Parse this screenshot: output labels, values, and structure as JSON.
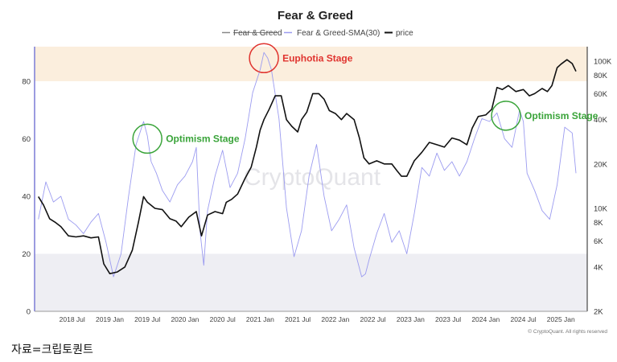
{
  "chart_data": {
    "type": "line",
    "title": "Fear & Greed",
    "legend": [
      {
        "name": "Fear & Greed",
        "color": "#888888",
        "strikethrough": true
      },
      {
        "name": "Fear & Greed-SMA(30)",
        "color": "#9c9cf0"
      },
      {
        "name": "price",
        "color": "#111111"
      }
    ],
    "left_axis": {
      "ylim": [
        0,
        92
      ],
      "ticks": [
        0,
        20,
        40,
        60,
        80
      ]
    },
    "right_axis": {
      "scale": "log",
      "ylim": [
        2000,
        125000
      ],
      "ticks": [
        2000,
        4000,
        6000,
        8000,
        10000,
        20000,
        40000,
        60000,
        80000,
        100000
      ],
      "tick_labels": [
        "2K",
        "4K",
        "6K",
        "8K",
        "10K",
        "20K",
        "40K",
        "60K",
        "80K",
        "100K"
      ]
    },
    "x_ticks": [
      "2018 Jul",
      "2019 Jan",
      "2019 Jul",
      "2020 Jan",
      "2020 Jul",
      "2021 Jan",
      "2021 Jul",
      "2022 Jan",
      "2022 Jul",
      "2023 Jan",
      "2023 Jul",
      "2024 Jan",
      "2024 Jul",
      "2025 Jan"
    ],
    "x_range": [
      2018.0,
      2025.35
    ],
    "bands": [
      {
        "name": "greed-zone",
        "y_from": 80,
        "y_to": 92,
        "color": "#fbeedd"
      },
      {
        "name": "fear-zone",
        "y_from": 0,
        "y_to": 20,
        "color": "#eeeef3"
      }
    ],
    "series": [
      {
        "name": "Fear & Greed-SMA(30)",
        "axis": "left",
        "x": [
          2018.05,
          2018.15,
          2018.25,
          2018.35,
          2018.45,
          2018.55,
          2018.65,
          2018.75,
          2018.85,
          2018.95,
          2019.05,
          2019.15,
          2019.25,
          2019.35,
          2019.45,
          2019.5,
          2019.55,
          2019.62,
          2019.7,
          2019.8,
          2019.9,
          2020.0,
          2020.1,
          2020.15,
          2020.2,
          2020.25,
          2020.3,
          2020.4,
          2020.5,
          2020.6,
          2020.7,
          2020.8,
          2020.9,
          2021.0,
          2021.05,
          2021.1,
          2021.15,
          2021.25,
          2021.35,
          2021.45,
          2021.55,
          2021.65,
          2021.75,
          2021.85,
          2021.95,
          2022.05,
          2022.15,
          2022.25,
          2022.35,
          2022.4,
          2022.45,
          2022.55,
          2022.65,
          2022.75,
          2022.85,
          2022.95,
          2023.05,
          2023.15,
          2023.25,
          2023.35,
          2023.45,
          2023.55,
          2023.65,
          2023.75,
          2023.85,
          2023.95,
          2024.05,
          2024.15,
          2024.25,
          2024.35,
          2024.45,
          2024.5,
          2024.55,
          2024.65,
          2024.75,
          2024.85,
          2024.95,
          2025.05,
          2025.15,
          2025.2
        ],
        "y": [
          32,
          45,
          38,
          40,
          32,
          30,
          27,
          31,
          34,
          24,
          12,
          20,
          40,
          58,
          66,
          61,
          52,
          48,
          42,
          38,
          44,
          47,
          52,
          57,
          28,
          16,
          35,
          47,
          56,
          43,
          48,
          60,
          76,
          84,
          90,
          88,
          84,
          67,
          36,
          19,
          28,
          47,
          58,
          40,
          28,
          32,
          37,
          22,
          12,
          13,
          18,
          27,
          34,
          24,
          28,
          20,
          34,
          50,
          47,
          55,
          49,
          52,
          47,
          52,
          60,
          67,
          66,
          69,
          60,
          57,
          70,
          66,
          48,
          42,
          35,
          32,
          44,
          64,
          62,
          48
        ]
      },
      {
        "name": "price",
        "axis": "right",
        "x": [
          2018.05,
          2018.12,
          2018.2,
          2018.28,
          2018.35,
          2018.45,
          2018.55,
          2018.65,
          2018.75,
          2018.85,
          2018.92,
          2019.0,
          2019.1,
          2019.2,
          2019.3,
          2019.38,
          2019.45,
          2019.5,
          2019.6,
          2019.7,
          2019.8,
          2019.88,
          2019.95,
          2020.05,
          2020.15,
          2020.22,
          2020.3,
          2020.4,
          2020.5,
          2020.55,
          2020.62,
          2020.7,
          2020.8,
          2020.88,
          2020.95,
          2021.0,
          2021.05,
          2021.12,
          2021.2,
          2021.28,
          2021.35,
          2021.42,
          2021.5,
          2021.55,
          2021.62,
          2021.7,
          2021.78,
          2021.85,
          2021.92,
          2022.0,
          2022.08,
          2022.15,
          2022.25,
          2022.32,
          2022.38,
          2022.45,
          2022.55,
          2022.65,
          2022.75,
          2022.82,
          2022.88,
          2022.95,
          2023.05,
          2023.15,
          2023.25,
          2023.35,
          2023.45,
          2023.55,
          2023.65,
          2023.75,
          2023.82,
          2023.9,
          2024.0,
          2024.08,
          2024.15,
          2024.22,
          2024.3,
          2024.4,
          2024.5,
          2024.58,
          2024.65,
          2024.75,
          2024.82,
          2024.88,
          2024.95,
          2025.0,
          2025.08,
          2025.15,
          2025.2
        ],
        "y": [
          12000,
          10500,
          8500,
          8000,
          7500,
          6500,
          6400,
          6500,
          6300,
          6400,
          4200,
          3600,
          3700,
          4000,
          5200,
          8000,
          12000,
          11000,
          10000,
          9800,
          8500,
          8200,
          7500,
          8700,
          9500,
          6500,
          9000,
          9500,
          9200,
          11000,
          11500,
          12500,
          16000,
          19000,
          26000,
          34000,
          40000,
          47000,
          58000,
          58000,
          40000,
          36000,
          33000,
          40000,
          45000,
          60000,
          60000,
          55000,
          46000,
          44000,
          40000,
          44000,
          40000,
          30000,
          22000,
          20000,
          21000,
          20000,
          20000,
          18000,
          16500,
          16500,
          21000,
          24000,
          28000,
          27000,
          26000,
          30000,
          29000,
          27000,
          35000,
          42000,
          43000,
          47000,
          66000,
          64000,
          68000,
          62000,
          64000,
          58000,
          60000,
          65000,
          62000,
          68000,
          90000,
          95000,
          102000,
          96000,
          85000
        ]
      }
    ],
    "annotations": [
      {
        "name": "euphoria",
        "label": "Euphotia Stage",
        "color": "#e0342f",
        "x": 2021.05,
        "y": 88
      },
      {
        "name": "optimism-2019",
        "label": "Optimism Stage",
        "color": "#3aa43a",
        "x": 2019.5,
        "y": 60
      },
      {
        "name": "optimism-2024",
        "label": "Optimism Stage",
        "color": "#3aa43a",
        "x": 2024.27,
        "y": 68
      }
    ],
    "watermark": "CryptoQuant",
    "copyright": "© CryptoQuant. All rights reserved"
  },
  "source_note": "자료=크립토퀀트"
}
